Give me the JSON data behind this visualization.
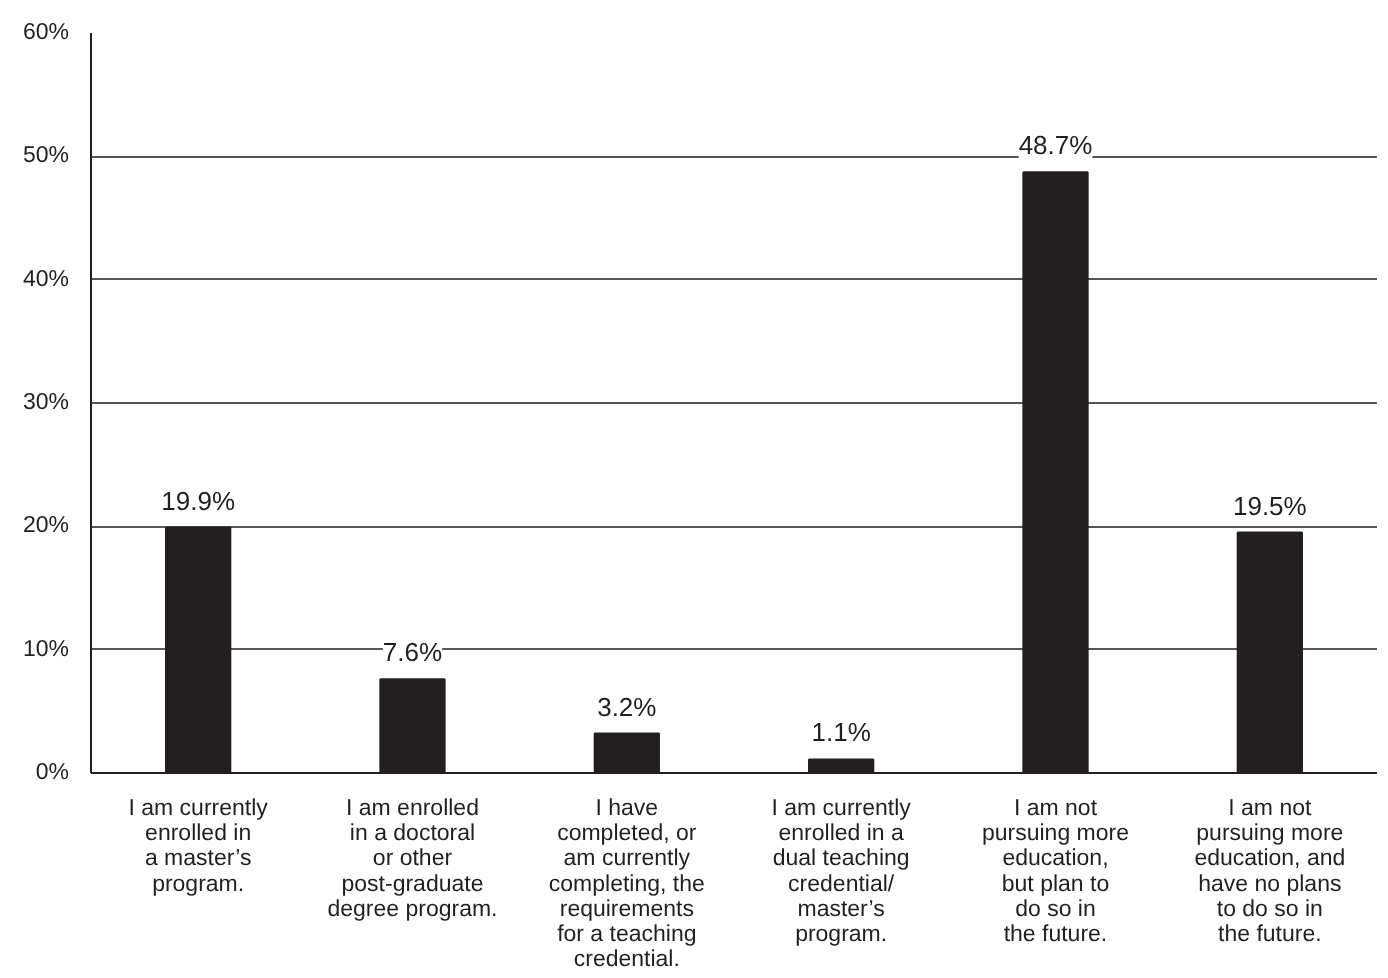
{
  "chart_data": {
    "type": "bar",
    "categories": [
      "I am currently\nenrolled in\na master’s\nprogram.",
      "I am enrolled\nin a doctoral\nor other\npost-graduate\ndegree program.",
      "I have\ncompleted, or\nam currently\ncompleting, the\nrequirements\nfor a teaching\ncredential.",
      "I am currently\nenrolled in a\ndual teaching\ncredential/\nmaster’s\nprogram.",
      "I am not\npursuing more\neducation,\nbut plan to\ndo so in\nthe future.",
      "I am not\npursuing more\neducation, and\nhave no plans\nto do so in\nthe future."
    ],
    "values": [
      19.9,
      7.6,
      3.2,
      1.1,
      48.7,
      19.5
    ],
    "value_labels": [
      "19.9%",
      "7.6%",
      "3.2%",
      "1.1%",
      "48.7%",
      "19.5%"
    ],
    "color": "#231f20",
    "ylim": [
      0,
      60
    ],
    "yticks": [
      {
        "value": 0,
        "label": "0%"
      },
      {
        "value": 10,
        "label": "10%"
      },
      {
        "value": 20,
        "label": "20%"
      },
      {
        "value": 30,
        "label": "30%"
      },
      {
        "value": 40,
        "label": "40%"
      },
      {
        "value": 50,
        "label": "50%"
      },
      {
        "value": 60,
        "label": "60%"
      }
    ],
    "grid": "y"
  }
}
